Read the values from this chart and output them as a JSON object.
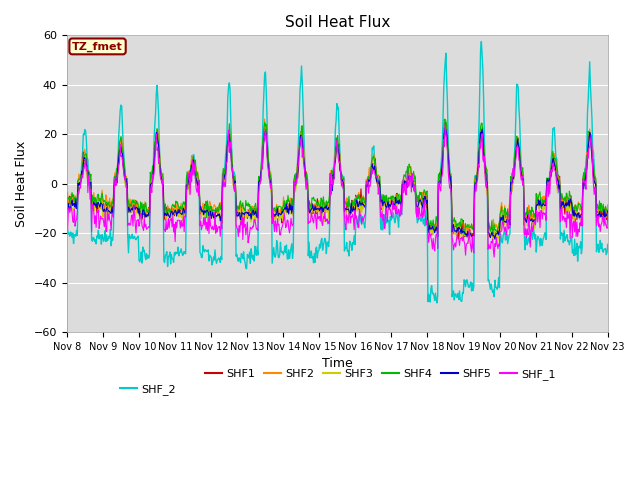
{
  "title": "Soil Heat Flux",
  "xlabel": "Time",
  "ylabel": "Soil Heat Flux",
  "ylim": [
    -60,
    60
  ],
  "yticks": [
    -60,
    -40,
    -20,
    0,
    20,
    40,
    60
  ],
  "annotation_text": "TZ_fmet",
  "annotation_color": "#8B0000",
  "annotation_box_color": "#FFFFD0",
  "series_colors": {
    "SHF1": "#CC0000",
    "SHF2": "#FF8800",
    "SHF3": "#CCCC00",
    "SHF4": "#00BB00",
    "SHF5": "#0000CC",
    "SHF_1": "#FF00FF",
    "SHF_2": "#00CCCC"
  },
  "bg_color": "#DCDCDC",
  "fig_bg_color": "#FFFFFF",
  "grid_color": "#FFFFFF",
  "legend_ncol": 6,
  "legend_ncol2": 1
}
